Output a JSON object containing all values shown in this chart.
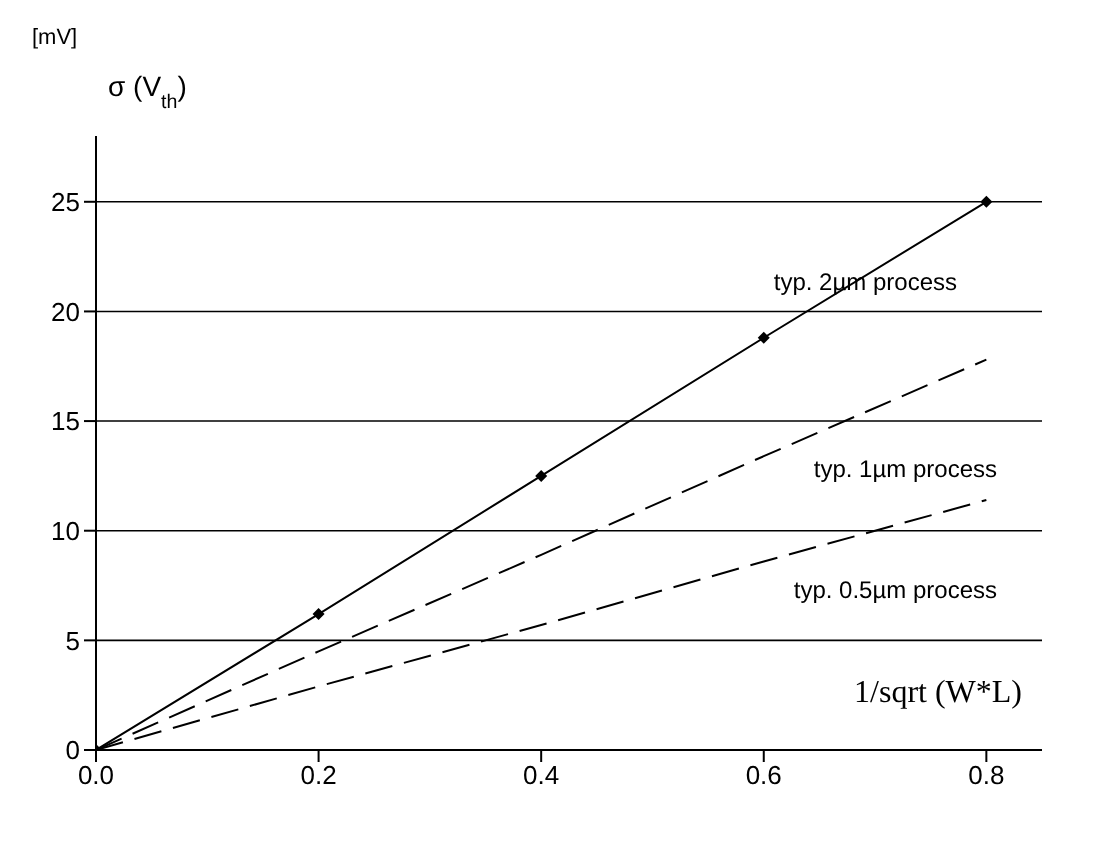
{
  "chart_data": {
    "type": "line",
    "ylabel": "[mV]",
    "xlabel": "1/sqrt (W*L)",
    "x": [
      0,
      0.2,
      0.4,
      0.6,
      0.8
    ],
    "series": [
      {
        "name": "typ. 2µm process",
        "color": "#000000",
        "values": [
          0,
          6.2,
          12.5,
          18.8,
          25
        ],
        "marker": "diamond",
        "line_style": "solid"
      },
      {
        "name": "typ. 1µm process",
        "color": "#000000",
        "values": [
          0,
          4.5,
          8.9,
          13.4,
          17.8
        ],
        "marker": "none",
        "line_style": "dashed"
      },
      {
        "name": "typ. 0.5µm process",
        "color": "#000000",
        "values": [
          0,
          2.9,
          5.7,
          8.6,
          11.4
        ],
        "marker": "none",
        "line_style": "dashed"
      }
    ],
    "annotations": [
      "σ (V$_{th}$)"
    ],
    "xlim": [
      0,
      0.85
    ],
    "ylim": [
      0,
      28
    ],
    "xticks": [
      {
        "value": 0,
        "label": "0.0"
      },
      {
        "value": 0.2,
        "label": "0.2"
      },
      {
        "value": 0.4,
        "label": "0.4"
      },
      {
        "value": 0.6,
        "label": "0.6"
      },
      {
        "value": 0.8,
        "label": "0.8"
      }
    ],
    "yticks": [
      0,
      5,
      10,
      15,
      20,
      25
    ],
    "grid": "y"
  }
}
